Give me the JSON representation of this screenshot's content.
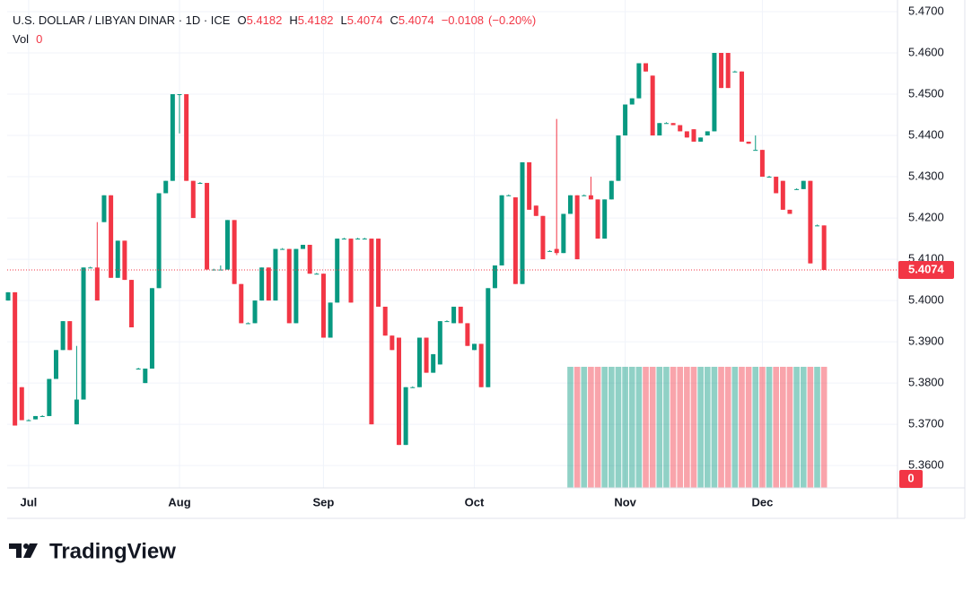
{
  "chart_data": {
    "type": "candlestick",
    "header": {
      "symbol": "U.S. DOLLAR / LIBYAN DINAR · 1D · ICE",
      "open_label": "O",
      "open": 5.4182,
      "high_label": "H",
      "high": 5.4182,
      "low_label": "L",
      "low": 5.4074,
      "close_label": "C",
      "close": 5.4074,
      "change": {
        "value": -0.0108,
        "label": "−0.0108"
      },
      "change_percent": {
        "value": -0.2,
        "label": "(−0.20%)"
      }
    },
    "volume_title": "Vol",
    "volume_value": 0,
    "brand": "TradingView",
    "up_color": "#089981",
    "down_color": "#f23645",
    "categories": [
      null,
      null,
      null,
      "Jul",
      null,
      null,
      null,
      null,
      null,
      null,
      null,
      null,
      null,
      null,
      null,
      null,
      null,
      null,
      null,
      null,
      null,
      null,
      null,
      null,
      null,
      "Aug",
      null,
      null,
      null,
      null,
      null,
      null,
      null,
      null,
      null,
      null,
      null,
      null,
      null,
      null,
      null,
      null,
      null,
      null,
      null,
      null,
      "Sep",
      null,
      null,
      null,
      null,
      null,
      null,
      null,
      null,
      null,
      null,
      null,
      null,
      null,
      null,
      null,
      null,
      null,
      null,
      null,
      null,
      null,
      "Oct",
      null,
      null,
      null,
      null,
      null,
      null,
      null,
      null,
      null,
      null,
      null,
      null,
      null,
      null,
      null,
      null,
      null,
      null,
      null,
      null,
      null,
      "Nov",
      null,
      null,
      null,
      null,
      null,
      null,
      null,
      null,
      null,
      null,
      null,
      null,
      null,
      null,
      null,
      null,
      null,
      null,
      null,
      "Dec",
      null,
      null,
      null,
      null,
      null,
      null,
      null,
      null,
      null
    ],
    "ohlc": [
      [
        5.4,
        5.402,
        5.4,
        5.402
      ],
      [
        5.402,
        5.402,
        5.3697,
        5.3697
      ],
      [
        5.379,
        5.379,
        5.371,
        5.371
      ],
      [
        5.371,
        5.3712,
        5.371,
        5.371
      ],
      [
        5.3712,
        5.372,
        5.3712,
        5.372
      ],
      [
        5.372,
        5.3722,
        5.372,
        5.372
      ],
      [
        5.372,
        5.381,
        5.372,
        5.381
      ],
      [
        5.381,
        5.388,
        5.381,
        5.388
      ],
      [
        5.388,
        5.395,
        5.388,
        5.395
      ],
      [
        5.395,
        5.395,
        5.388,
        5.388
      ],
      [
        5.37,
        5.389,
        5.37,
        5.376
      ],
      [
        5.376,
        5.408,
        5.376,
        5.408
      ],
      [
        5.408,
        5.4082,
        5.408,
        5.408
      ],
      [
        5.408,
        5.419,
        5.4,
        5.4
      ],
      [
        5.419,
        5.4255,
        5.419,
        5.4255
      ],
      [
        5.4255,
        5.4255,
        5.4055,
        5.4055
      ],
      [
        5.4055,
        5.4145,
        5.4055,
        5.4145
      ],
      [
        5.4145,
        5.4145,
        5.405,
        5.405
      ],
      [
        5.405,
        5.405,
        5.3935,
        5.3935
      ],
      [
        5.3835,
        5.3837,
        5.3835,
        5.3835
      ],
      [
        5.38,
        5.3835,
        5.38,
        5.3835
      ],
      [
        5.3835,
        5.403,
        5.3835,
        5.403
      ],
      [
        5.403,
        5.426,
        5.403,
        5.426
      ],
      [
        5.426,
        5.429,
        5.426,
        5.429
      ],
      [
        5.429,
        5.45,
        5.429,
        5.45
      ],
      [
        5.45,
        5.45,
        5.4405,
        5.45
      ],
      [
        5.45,
        5.45,
        5.429,
        5.429
      ],
      [
        5.429,
        5.429,
        5.42,
        5.42
      ],
      [
        5.4285,
        5.4287,
        5.4285,
        5.4285
      ],
      [
        5.4285,
        5.4285,
        5.4075,
        5.4075
      ],
      [
        5.4075,
        5.4077,
        5.4075,
        5.4075
      ],
      [
        5.4075,
        5.4085,
        5.4075,
        5.4075
      ],
      [
        5.4075,
        5.4195,
        5.4075,
        5.4195
      ],
      [
        5.4195,
        5.4195,
        5.404,
        5.404
      ],
      [
        5.404,
        5.404,
        5.3945,
        5.3945
      ],
      [
        5.3945,
        5.3947,
        5.3945,
        5.3945
      ],
      [
        5.3945,
        5.4,
        5.3945,
        5.4
      ],
      [
        5.4,
        5.408,
        5.4,
        5.408
      ],
      [
        5.408,
        5.408,
        5.4,
        5.4
      ],
      [
        5.4,
        5.4125,
        5.4,
        5.4125
      ],
      [
        5.4125,
        5.4127,
        5.4125,
        5.4125
      ],
      [
        5.4125,
        5.4125,
        5.3945,
        5.3945
      ],
      [
        5.3945,
        5.4125,
        5.3945,
        5.4125
      ],
      [
        5.4125,
        5.4135,
        5.4125,
        5.4135
      ],
      [
        5.4135,
        5.4135,
        5.4065,
        5.4065
      ],
      [
        5.4065,
        5.4067,
        5.4065,
        5.4065
      ],
      [
        5.4065,
        5.4065,
        5.391,
        5.391
      ],
      [
        5.391,
        5.3995,
        5.391,
        5.3995
      ],
      [
        5.3995,
        5.415,
        5.3995,
        5.415
      ],
      [
        5.415,
        5.4152,
        5.415,
        5.415
      ],
      [
        5.415,
        5.415,
        5.3995,
        5.3995
      ],
      [
        5.415,
        5.4152,
        5.415,
        5.415
      ],
      [
        5.415,
        5.4152,
        5.415,
        5.415
      ],
      [
        5.415,
        5.415,
        5.37,
        5.37
      ],
      [
        5.415,
        5.415,
        5.3985,
        5.3985
      ],
      [
        5.3985,
        5.3985,
        5.3915,
        5.3915
      ],
      [
        5.3915,
        5.3915,
        5.388,
        5.388
      ],
      [
        5.391,
        5.391,
        5.365,
        5.365
      ],
      [
        5.365,
        5.379,
        5.365,
        5.379
      ],
      [
        5.379,
        5.3792,
        5.379,
        5.379
      ],
      [
        5.379,
        5.391,
        5.379,
        5.391
      ],
      [
        5.391,
        5.391,
        5.3825,
        5.3825
      ],
      [
        5.3825,
        5.387,
        5.3825,
        5.387
      ],
      [
        5.3845,
        5.395,
        5.3845,
        5.395
      ],
      [
        5.395,
        5.3952,
        5.395,
        5.395
      ],
      [
        5.3945,
        5.3985,
        5.3945,
        5.3985
      ],
      [
        5.3985,
        5.3985,
        5.3945,
        5.3945
      ],
      [
        5.3945,
        5.3945,
        5.389,
        5.389
      ],
      [
        5.388,
        5.3895,
        5.388,
        5.3895
      ],
      [
        5.3895,
        5.3895,
        5.379,
        5.379
      ],
      [
        5.379,
        5.403,
        5.379,
        5.403
      ],
      [
        5.403,
        5.4085,
        5.403,
        5.4085
      ],
      [
        5.4085,
        5.4255,
        5.4085,
        5.4255
      ],
      [
        5.4255,
        5.4257,
        5.4255,
        5.4255
      ],
      [
        5.425,
        5.425,
        5.404,
        5.404
      ],
      [
        5.404,
        5.4335,
        5.404,
        5.4335
      ],
      [
        5.4335,
        5.4335,
        5.422,
        5.422
      ],
      [
        5.423,
        5.423,
        5.4205,
        5.4205
      ],
      [
        5.4205,
        5.4205,
        5.41,
        5.41
      ],
      [
        5.412,
        5.4122,
        5.412,
        5.412
      ],
      [
        5.4125,
        5.444,
        5.411,
        5.4115
      ],
      [
        5.4115,
        5.421,
        5.4115,
        5.421
      ],
      [
        5.421,
        5.4255,
        5.421,
        5.4255
      ],
      [
        5.4255,
        5.4255,
        5.41,
        5.41
      ],
      [
        5.4255,
        5.4257,
        5.4255,
        5.4255
      ],
      [
        5.4255,
        5.43,
        5.4245,
        5.4245
      ],
      [
        5.4245,
        5.4245,
        5.415,
        5.415
      ],
      [
        5.415,
        5.4245,
        5.415,
        5.4245
      ],
      [
        5.4245,
        5.429,
        5.4245,
        5.429
      ],
      [
        5.429,
        5.44,
        5.429,
        5.44
      ],
      [
        5.44,
        5.4475,
        5.44,
        5.4475
      ],
      [
        5.4475,
        5.449,
        5.4475,
        5.449
      ],
      [
        5.449,
        5.4575,
        5.449,
        5.4575
      ],
      [
        5.4575,
        5.4575,
        5.4555,
        5.4555
      ],
      [
        5.4545,
        5.4545,
        5.44,
        5.44
      ],
      [
        5.44,
        5.443,
        5.44,
        5.443
      ],
      [
        5.443,
        5.4432,
        5.443,
        5.443
      ],
      [
        5.443,
        5.443,
        5.4425,
        5.4425
      ],
      [
        5.4425,
        5.4425,
        5.441,
        5.441
      ],
      [
        5.441,
        5.441,
        5.4395,
        5.4395
      ],
      [
        5.4415,
        5.4415,
        5.4385,
        5.4385
      ],
      [
        5.4385,
        5.4395,
        5.4385,
        5.4395
      ],
      [
        5.44,
        5.441,
        5.44,
        5.441
      ],
      [
        5.441,
        5.46,
        5.441,
        5.46
      ],
      [
        5.46,
        5.46,
        5.4515,
        5.4515
      ],
      [
        5.46,
        5.46,
        5.4515,
        5.4515
      ],
      [
        5.4555,
        5.4557,
        5.4555,
        5.4555
      ],
      [
        5.4555,
        5.4555,
        5.4385,
        5.4385
      ],
      [
        5.4385,
        5.4385,
        5.438,
        5.438
      ],
      [
        5.4365,
        5.44,
        5.4365,
        5.4365
      ],
      [
        5.4365,
        5.4365,
        5.43,
        5.43
      ],
      [
        5.43,
        5.4302,
        5.43,
        5.43
      ],
      [
        5.43,
        5.43,
        5.426,
        5.426
      ],
      [
        5.429,
        5.429,
        5.422,
        5.422
      ],
      [
        5.422,
        5.422,
        5.421,
        5.421
      ],
      [
        5.427,
        5.4272,
        5.427,
        5.427
      ],
      [
        5.427,
        5.429,
        5.427,
        5.429
      ],
      [
        5.429,
        5.429,
        5.409,
        5.409
      ],
      [
        5.4182,
        5.4184,
        5.4182,
        5.4182
      ],
      [
        5.4182,
        5.4182,
        5.4074,
        5.4074
      ]
    ],
    "volume": [
      null,
      null,
      null,
      null,
      null,
      null,
      null,
      null,
      null,
      null,
      null,
      null,
      null,
      null,
      null,
      null,
      null,
      null,
      null,
      null,
      null,
      null,
      null,
      null,
      null,
      null,
      null,
      null,
      null,
      null,
      null,
      null,
      null,
      null,
      null,
      null,
      null,
      null,
      null,
      null,
      null,
      null,
      null,
      null,
      null,
      null,
      null,
      null,
      null,
      null,
      null,
      null,
      null,
      null,
      null,
      null,
      null,
      null,
      null,
      null,
      null,
      null,
      null,
      null,
      null,
      null,
      null,
      null,
      null,
      null,
      null,
      null,
      null,
      null,
      null,
      null,
      null,
      null,
      null,
      null,
      null,
      null,
      0,
      0,
      0,
      0,
      0,
      0,
      0,
      0,
      0,
      0,
      0,
      0,
      0,
      0,
      0,
      0,
      0,
      0,
      0,
      0,
      0,
      0,
      0,
      0,
      0,
      0,
      0,
      0,
      0,
      0,
      0,
      0,
      0,
      0,
      0,
      0,
      0,
      0
    ],
    "ylim": [
      5.3546,
      5.47
    ],
    "yticks": [
      {
        "value": 5.47,
        "label": "5.4700"
      },
      {
        "value": 5.46,
        "label": "5.4600"
      },
      {
        "value": 5.45,
        "label": "5.4500"
      },
      {
        "value": 5.44,
        "label": "5.4400"
      },
      {
        "value": 5.43,
        "label": "5.4300"
      },
      {
        "value": 5.42,
        "label": "5.4200"
      },
      {
        "value": 5.41,
        "label": "5.4100"
      },
      {
        "value": 5.4,
        "label": "5.4000"
      },
      {
        "value": 5.39,
        "label": "5.3900"
      },
      {
        "value": 5.38,
        "label": "5.3800"
      },
      {
        "value": 5.37,
        "label": "5.3700"
      },
      {
        "value": 5.36,
        "label": "5.3600"
      }
    ],
    "grid": true
  }
}
